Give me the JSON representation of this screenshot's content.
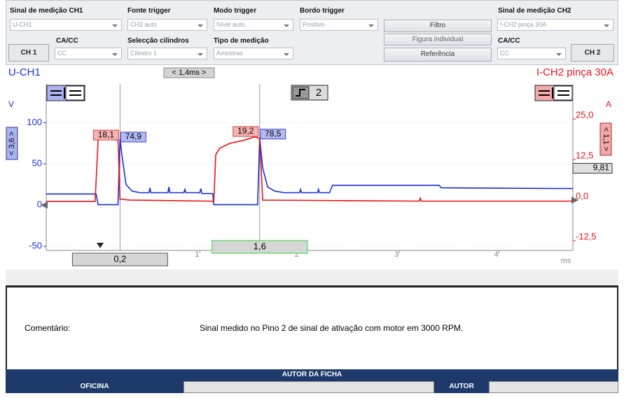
{
  "toolbar": {
    "ch1": {
      "label": "Sinal de medição CH1",
      "value": "U-CH1",
      "coupling_label": "CA/CC",
      "coupling_value": "CC",
      "button": "CH 1"
    },
    "trigger_source": {
      "label": "Fonte trigger",
      "value": "CH2 auto"
    },
    "trigger_mode": {
      "label": "Modo trigger",
      "value": "Nível auto."
    },
    "trigger_edge": {
      "label": "Bordo trigger",
      "value": "Positivo"
    },
    "cylinder": {
      "label": "Selecção cilindros",
      "value": "Cilindro 1"
    },
    "measurement_type": {
      "label": "Tipo de medição",
      "value": "Amostras"
    },
    "buttons": [
      "Filtro",
      "Figura individual",
      "Referência"
    ],
    "ch2": {
      "label": "Sinal de medição CH2",
      "value": "I-CH2 pinça 30A",
      "coupling_label": "CA/CC",
      "coupling_value": "CC",
      "button": "CH 2"
    }
  },
  "chart_data": {
    "type": "line",
    "title_left": "U-CH1",
    "title_right": "I-CH2 pinça 30A",
    "time_window": "< 1,4ms >",
    "ylabel": "V",
    "y2label": "A",
    "xlabel": "ms",
    "y_scale_label": "< 3,6 >",
    "y2_scale_label": "< 1,1 >",
    "trigger_channel": "2",
    "trigger_level": {
      "value": 9.81,
      "label": "9,81"
    },
    "grid": true,
    "xlim": [
      -0.54,
      4.74
    ],
    "xticks": [
      1,
      2,
      3,
      4
    ],
    "ylim": [
      -55,
      147
    ],
    "yticks": [
      -50,
      0,
      50,
      100
    ],
    "y2lim": [
      -15.5,
      35.8
    ],
    "y2ticks": [
      {
        "value": -12.5,
        "label": "-12,5"
      },
      {
        "value": 0,
        "label": "0,0"
      },
      {
        "value": 12.5,
        "label": "12,5"
      },
      {
        "value": 25,
        "label": "25,0"
      }
    ],
    "series": [
      {
        "name": "U-CH1",
        "color": "#1a2fd2",
        "axis": "y",
        "x": [
          -0.54,
          -0.04,
          -0.02,
          0.18,
          0.2,
          0.22,
          0.26,
          0.32,
          0.4,
          0.49,
          0.5,
          0.51,
          0.68,
          0.69,
          0.7,
          0.84,
          0.85,
          0.86,
          1.0,
          1.01,
          1.02,
          1.13,
          1.14,
          1.58,
          1.6,
          1.63,
          1.68,
          1.75,
          1.85,
          2.0,
          2.01,
          2.02,
          2.18,
          2.19,
          2.2,
          2.3,
          2.33,
          3.4,
          3.42,
          4.74
        ],
        "values": [
          13.5,
          13.5,
          0.5,
          0.5,
          80,
          60,
          25,
          17,
          15,
          15,
          21,
          15,
          15,
          22,
          15,
          15,
          19,
          15,
          15,
          20,
          14,
          14,
          0.5,
          0.5,
          82,
          45,
          22,
          17,
          15,
          15,
          19,
          15,
          15,
          19,
          15,
          15,
          24,
          24,
          21,
          20
        ]
      },
      {
        "name": "I-CH2 pinça 30A",
        "color": "#e8141c",
        "axis": "y2",
        "x": [
          -0.54,
          -0.05,
          -0.02,
          0.02,
          0.18,
          0.2,
          0.3,
          1.1,
          1.14,
          1.16,
          1.2,
          1.3,
          1.45,
          1.55,
          1.6,
          1.63,
          3.2,
          3.21,
          3.22,
          4.74
        ],
        "values": [
          -0.4,
          -0.4,
          18.5,
          19,
          18.5,
          0.3,
          0,
          -0.3,
          -0.4,
          14,
          16,
          17.5,
          18.5,
          19.5,
          19,
          0,
          -0.3,
          0.6,
          -0.3,
          -0.3
        ]
      }
    ],
    "cursors": [
      {
        "x": 0.2,
        "x_label": "0,2",
        "ch1_value": 74.9,
        "ch1_label": "74,9",
        "ch2_value": 18.1,
        "ch2_label": "18,1"
      },
      {
        "x": 1.6,
        "x_label": "1,6",
        "ch1_value": 78.5,
        "ch1_label": "78,5",
        "ch2_value": 19.2,
        "ch2_label": "19,2"
      }
    ]
  },
  "comment": {
    "label": "Comentário:",
    "text": "Sinal medido no Pino 2 de sinal de ativação com motor em 3000 RPM."
  },
  "footer": {
    "title": "AUTOR DA FICHA",
    "workshop_label": "OFICINA",
    "author_label": "AUTOR"
  }
}
